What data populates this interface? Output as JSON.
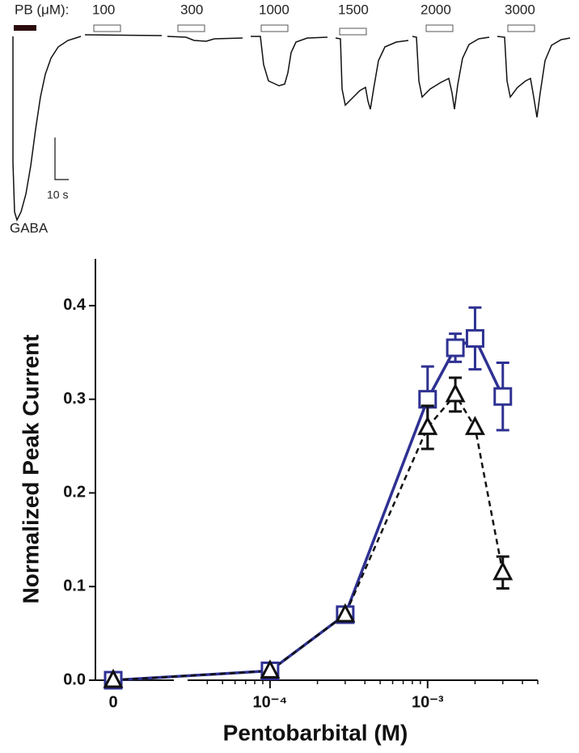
{
  "trace_panel": {
    "prefix": "PB (μM):",
    "concentrations": [
      100,
      300,
      1000,
      1500,
      2000,
      3000
    ],
    "scale_label": "10 s",
    "control_label": "GABA"
  },
  "chart_data": {
    "type": "line",
    "x_label": "Pentobarbital (M)",
    "y_label": "Normalized Peak Current",
    "x": [
      0,
      0.0001,
      0.0003,
      0.001,
      0.0015,
      0.002,
      0.003
    ],
    "x_scale": "log",
    "series": [
      {
        "color": "#2e3192",
        "marker": "square",
        "line_style": "solid",
        "values": [
          0,
          0.01,
          0.07,
          0.3,
          0.355,
          0.365,
          0.303
        ],
        "errors": [
          0,
          0,
          0,
          0.035,
          0.015,
          0.033,
          0.036
        ]
      },
      {
        "color": "#111111",
        "marker": "triangle",
        "line_style": "dashed",
        "values": [
          0,
          0.01,
          0.07,
          0.27,
          0.305,
          0.27,
          0.115
        ],
        "errors": [
          0,
          0,
          0,
          0.023,
          0.018,
          0,
          0.017
        ]
      }
    ],
    "xlim": [
      3e-05,
      0.005
    ],
    "xticks": [
      0,
      {
        "value": 0.0001,
        "label": "10⁻⁴"
      },
      {
        "value": 0.001,
        "label": "10⁻³"
      }
    ],
    "x_minor_ticks": [
      4e-05,
      5e-05,
      6e-05,
      7e-05,
      8e-05,
      9e-05,
      0.0002,
      0.0003,
      0.0004,
      0.0005,
      0.0006,
      0.0007,
      0.0008,
      0.0009,
      0.002,
      0.003,
      0.004,
      0.005
    ],
    "ylim": [
      0,
      0.45
    ],
    "yticks": [
      {
        "value": 0,
        "label": "0.0"
      },
      0.1,
      0.2,
      0.3,
      0.4
    ]
  }
}
